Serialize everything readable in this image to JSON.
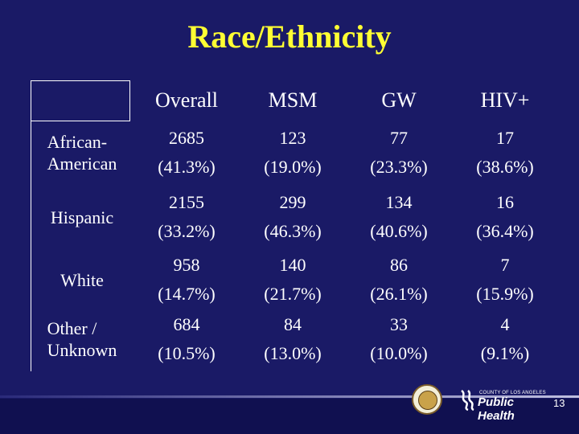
{
  "title": "Race/Ethnicity",
  "table": {
    "columns": [
      "Overall",
      "MSM",
      "GW",
      "HIV+"
    ],
    "rows": [
      {
        "label_lines": [
          "African-",
          "American"
        ],
        "cells": [
          [
            "2685",
            "(41.3%)"
          ],
          [
            "123",
            "(19.0%)"
          ],
          [
            "77",
            "(23.3%)"
          ],
          [
            "17",
            "(38.6%)"
          ]
        ]
      },
      {
        "label_lines": [
          "Hispanic"
        ],
        "cells": [
          [
            "2155",
            "(33.2%)"
          ],
          [
            "299",
            "(46.3%)"
          ],
          [
            "134",
            "(40.6%)"
          ],
          [
            "16",
            "(36.4%)"
          ]
        ]
      },
      {
        "label_lines": [
          "White"
        ],
        "cells": [
          [
            "958",
            "(14.7%)"
          ],
          [
            "140",
            "(21.7%)"
          ],
          [
            "86",
            "(26.1%)"
          ],
          [
            "7",
            "(15.9%)"
          ]
        ]
      },
      {
        "label_lines": [
          "Other /",
          "Unknown"
        ],
        "cells": [
          [
            "684",
            "(10.5%)"
          ],
          [
            "84",
            "(13.0%)"
          ],
          [
            "33",
            "(10.0%)"
          ],
          [
            "4",
            "(9.1%)"
          ]
        ]
      }
    ]
  },
  "footer": {
    "logo_small": "COUNTY OF LOS ANGELES",
    "logo_big": "Public Health",
    "page_number": "13",
    "seal_icon": "county-seal-icon",
    "logo_icon": "public-health-logo-icon"
  },
  "colors": {
    "background": "#1a1a66",
    "title": "#ffff33",
    "text": "#ffffff"
  }
}
